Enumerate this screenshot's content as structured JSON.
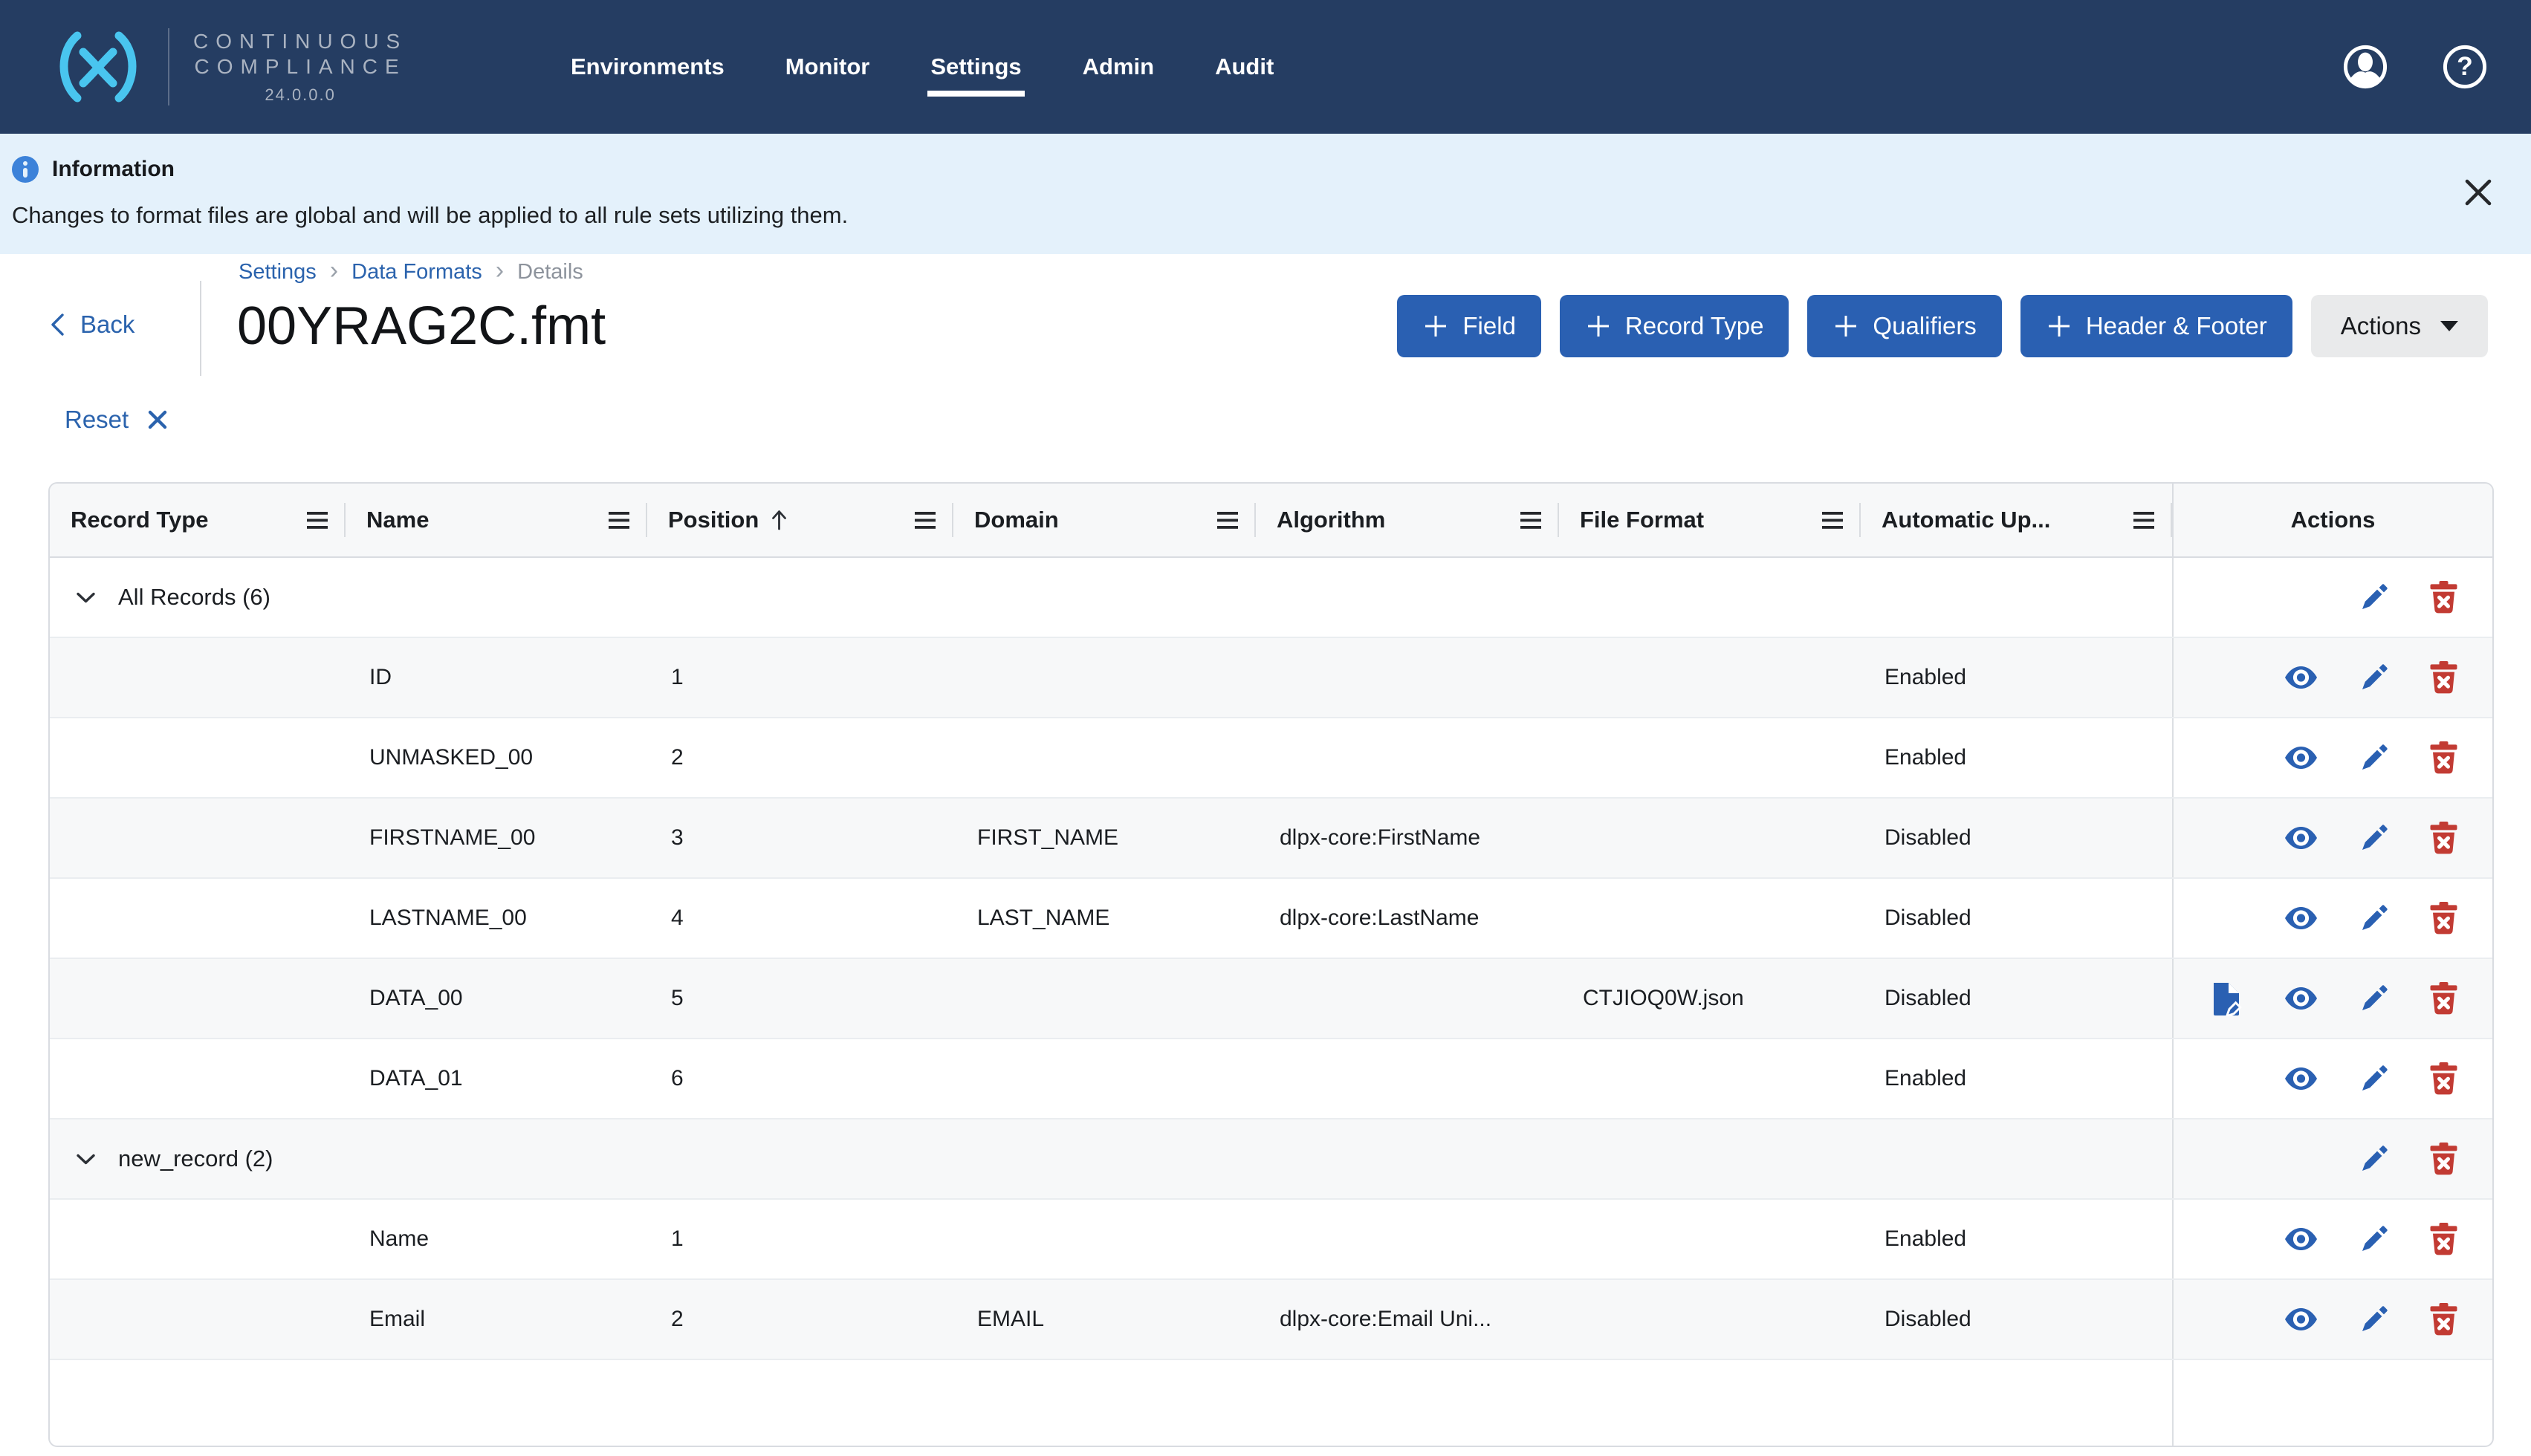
{
  "nav": {
    "brand": {
      "name_line1": "CONTINUOUS",
      "name_line2": "COMPLIANCE",
      "version": "24.0.0.0"
    },
    "items": [
      {
        "label": "Environments",
        "active": false
      },
      {
        "label": "Monitor",
        "active": false
      },
      {
        "label": "Settings",
        "active": true
      },
      {
        "label": "Admin",
        "active": false
      },
      {
        "label": "Audit",
        "active": false
      }
    ]
  },
  "banner": {
    "title": "Information",
    "message": "Changes to format files are global and will be applied to all rule sets utilizing them."
  },
  "breadcrumb": {
    "items": [
      {
        "label": "Settings",
        "link": true
      },
      {
        "label": "Data Formats",
        "link": true
      },
      {
        "label": "Details",
        "link": false
      }
    ]
  },
  "page": {
    "back_label": "Back",
    "title": "00YRAG2C.fmt",
    "reset_label": "Reset"
  },
  "toolbar": {
    "add_buttons": [
      {
        "label": "Field"
      },
      {
        "label": "Record Type"
      },
      {
        "label": "Qualifiers"
      },
      {
        "label": "Header & Footer"
      }
    ],
    "actions_label": "Actions"
  },
  "table": {
    "columns": [
      {
        "label": "Record Type",
        "menu": true
      },
      {
        "label": "Name",
        "menu": true
      },
      {
        "label": "Position",
        "menu": true,
        "sorted": "asc"
      },
      {
        "label": "Domain",
        "menu": true
      },
      {
        "label": "Algorithm",
        "menu": true
      },
      {
        "label": "File Format",
        "menu": true
      },
      {
        "label": "Automatic Up...",
        "menu": true
      },
      {
        "label": "Actions",
        "menu": false
      }
    ],
    "rows": [
      {
        "type": "group",
        "label": "All Records (6)",
        "actions": [
          "edit",
          "delete"
        ]
      },
      {
        "type": "field",
        "name": "ID",
        "position": "1",
        "domain": "",
        "algorithm": "",
        "file_format": "",
        "automatic_update": "Enabled",
        "actions": [
          "view",
          "edit",
          "delete"
        ]
      },
      {
        "type": "field",
        "name": "UNMASKED_00",
        "position": "2",
        "domain": "",
        "algorithm": "",
        "file_format": "",
        "automatic_update": "Enabled",
        "actions": [
          "view",
          "edit",
          "delete"
        ]
      },
      {
        "type": "field",
        "name": "FIRSTNAME_00",
        "position": "3",
        "domain": "FIRST_NAME",
        "algorithm": "dlpx-core:FirstName",
        "file_format": "",
        "automatic_update": "Disabled",
        "actions": [
          "view",
          "edit",
          "delete"
        ]
      },
      {
        "type": "field",
        "name": "LASTNAME_00",
        "position": "4",
        "domain": "LAST_NAME",
        "algorithm": "dlpx-core:LastName",
        "file_format": "",
        "automatic_update": "Disabled",
        "actions": [
          "view",
          "edit",
          "delete"
        ]
      },
      {
        "type": "field",
        "name": "DATA_00",
        "position": "5",
        "domain": "",
        "algorithm": "",
        "file_format": "CTJIOQ0W.json",
        "automatic_update": "Disabled",
        "actions": [
          "file-edit",
          "view",
          "edit",
          "delete"
        ]
      },
      {
        "type": "field",
        "name": "DATA_01",
        "position": "6",
        "domain": "",
        "algorithm": "",
        "file_format": "",
        "automatic_update": "Enabled",
        "actions": [
          "view",
          "edit",
          "delete"
        ]
      },
      {
        "type": "group",
        "label": "new_record (2)",
        "actions": [
          "edit",
          "delete"
        ]
      },
      {
        "type": "field",
        "name": "Name",
        "position": "1",
        "domain": "",
        "algorithm": "",
        "file_format": "",
        "automatic_update": "Enabled",
        "actions": [
          "view",
          "edit",
          "delete"
        ]
      },
      {
        "type": "field",
        "name": "Email",
        "position": "2",
        "domain": "EMAIL",
        "algorithm": "dlpx-core:Email Uni...",
        "file_format": "",
        "automatic_update": "Disabled",
        "actions": [
          "view",
          "edit",
          "delete"
        ]
      }
    ]
  },
  "colors": {
    "navbar": "#253d62",
    "accent_cyan": "#49c5ef",
    "link_blue": "#2b63ad",
    "button_blue": "#2a60b2",
    "banner_bg": "#e4f1fb",
    "icon_blue": "#2a60b2",
    "icon_red": "#c23b33",
    "row_alt": "#f7f8f9"
  }
}
